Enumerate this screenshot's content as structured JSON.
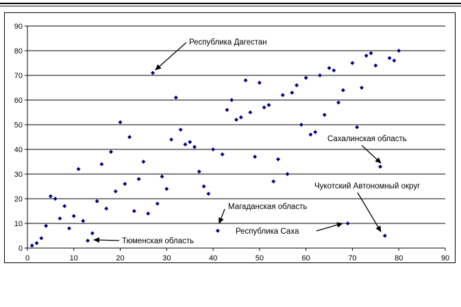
{
  "chart_data": {
    "type": "scatter",
    "title": "",
    "xlabel": "",
    "ylabel": "",
    "xlim": [
      0,
      90
    ],
    "ylim": [
      0,
      90
    ],
    "xticks": [
      "0",
      "10",
      "20",
      "30",
      "40",
      "50",
      "60",
      "70",
      "80",
      "90"
    ],
    "yticks": [
      "0",
      "10",
      "20",
      "30",
      "40",
      "50",
      "60",
      "70",
      "80",
      "90"
    ],
    "grid": "horizontal",
    "legend": "none",
    "marker_color": "#000080",
    "x": [
      1,
      2,
      3,
      4,
      5,
      6,
      7,
      8,
      9,
      10,
      11,
      12,
      13,
      14,
      15,
      16,
      17,
      18,
      19,
      20,
      21,
      22,
      23,
      24,
      25,
      26,
      27,
      28,
      29,
      30,
      31,
      32,
      33,
      34,
      35,
      36,
      37,
      38,
      39,
      40,
      41,
      42,
      43,
      44,
      45,
      46,
      47,
      48,
      49,
      50,
      51,
      52,
      53,
      54,
      55,
      56,
      57,
      58,
      59,
      60,
      61,
      62,
      63,
      64,
      65,
      66,
      67,
      68,
      69,
      70,
      71,
      72,
      73,
      74,
      75,
      76,
      77,
      78,
      79,
      80
    ],
    "y": [
      1,
      2,
      4,
      9,
      21,
      20,
      12,
      17,
      8,
      13,
      32,
      11,
      3,
      6,
      19,
      34,
      16,
      39,
      23,
      51,
      26,
      45,
      15,
      28,
      35,
      14,
      71,
      18,
      29,
      24,
      44,
      61,
      48,
      42,
      43,
      41,
      31,
      25,
      22,
      40,
      7,
      38,
      56,
      60,
      52,
      53,
      68,
      55,
      37,
      67,
      57,
      58,
      27,
      36,
      62,
      30,
      63,
      66,
      50,
      69,
      46,
      47,
      70,
      54,
      73,
      72,
      59,
      64,
      10,
      75,
      49,
      65,
      78,
      79,
      74,
      33,
      5,
      77,
      76,
      80
    ],
    "annotations": [
      {
        "label": "Республика Дагестан",
        "x": 27,
        "y": 71
      },
      {
        "label": "Сахалинская область",
        "x": 76,
        "y": 33
      },
      {
        "label": "Чукотский Автономный округ",
        "x": 77,
        "y": 5
      },
      {
        "label": "Магаданская область",
        "x": 41,
        "y": 7
      },
      {
        "label": "Республика Саха",
        "x": 69,
        "y": 10
      },
      {
        "label": "Тюменская область",
        "x": 13,
        "y": 3
      }
    ]
  }
}
